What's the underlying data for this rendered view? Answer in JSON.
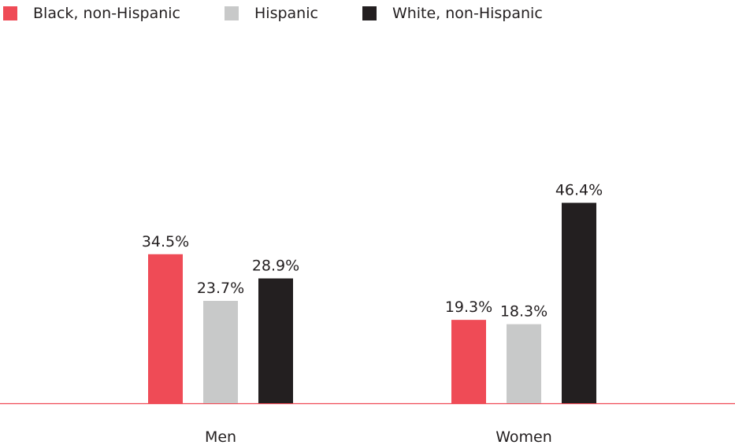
{
  "chart_data": {
    "type": "bar",
    "categories": [
      "Men",
      "Women"
    ],
    "series": [
      {
        "name": "Black, non-Hispanic",
        "color": "#ef4b56",
        "values": [
          34.5,
          19.3
        ]
      },
      {
        "name": "Hispanic",
        "color": "#c8c9c9",
        "values": [
          23.7,
          18.3
        ]
      },
      {
        "name": "White, non-Hispanic",
        "color": "#231f20",
        "values": [
          28.9,
          46.4
        ]
      }
    ],
    "value_suffix": "%",
    "ylim": [
      0,
      50
    ],
    "legend_position": "top-left",
    "grid": false,
    "baseline_color": "#ef4b56"
  }
}
